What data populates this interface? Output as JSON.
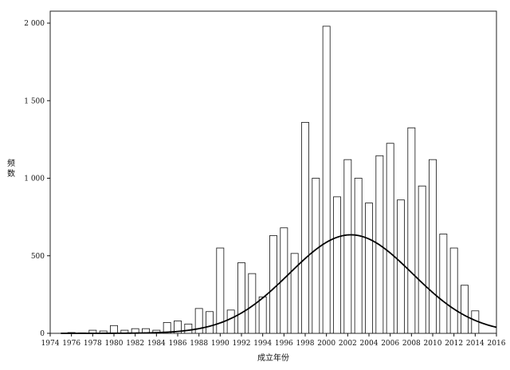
{
  "chart_data": {
    "type": "bar",
    "title": "",
    "xlabel": "成立年份",
    "ylabel": "频数",
    "ylim": [
      0,
      2000
    ],
    "xlim": [
      1974,
      2016
    ],
    "grid": false,
    "x_ticks": [
      1974,
      1976,
      1978,
      1980,
      1982,
      1984,
      1986,
      1988,
      1990,
      1992,
      1994,
      1996,
      1998,
      2000,
      2002,
      2004,
      2006,
      2008,
      2010,
      2012,
      2014,
      2016
    ],
    "y_ticks": [
      0,
      500,
      1000,
      1500,
      2000
    ],
    "y_tick_labels": [
      "0",
      "500",
      "1 000",
      "1 500",
      "2 000"
    ],
    "categories": [
      1976,
      1977,
      1978,
      1979,
      1980,
      1981,
      1982,
      1983,
      1984,
      1985,
      1986,
      1987,
      1988,
      1989,
      1990,
      1991,
      1992,
      1993,
      1994,
      1995,
      1996,
      1997,
      1998,
      1999,
      2000,
      2001,
      2002,
      2003,
      2004,
      2005,
      2006,
      2007,
      2008,
      2009,
      2010,
      2011,
      2012,
      2013,
      2014
    ],
    "values": [
      5,
      3,
      20,
      15,
      50,
      20,
      30,
      30,
      20,
      70,
      80,
      60,
      160,
      140,
      550,
      150,
      455,
      385,
      235,
      630,
      680,
      515,
      1360,
      1000,
      1980,
      880,
      1120,
      1000,
      840,
      1145,
      1225,
      860,
      1325,
      950,
      1120,
      640,
      550,
      310,
      145
    ],
    "fit_curve": {
      "type": "normal",
      "mean": 2002.3,
      "sd": 5.8,
      "peak": 635
    }
  }
}
